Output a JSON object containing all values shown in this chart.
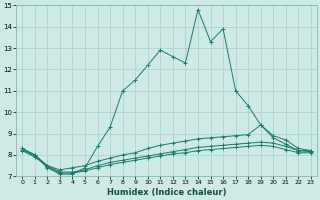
{
  "xlabel": "Humidex (Indice chaleur)",
  "ylabel": "",
  "background_color": "#ceeae6",
  "grid_color": "#aacdc8",
  "line_color": "#1a7a6e",
  "xlim": [
    -0.5,
    23.5
  ],
  "ylim": [
    7,
    15
  ],
  "xticks": [
    0,
    1,
    2,
    3,
    4,
    5,
    6,
    7,
    8,
    9,
    10,
    11,
    12,
    13,
    14,
    15,
    16,
    17,
    18,
    19,
    20,
    21,
    22,
    23
  ],
  "yticks": [
    7,
    8,
    9,
    10,
    11,
    12,
    13,
    14,
    15
  ],
  "series": {
    "main": {
      "x": [
        0,
        1,
        2,
        3,
        4,
        5,
        6,
        7,
        8,
        9,
        10,
        11,
        12,
        13,
        14,
        15,
        16,
        17,
        18,
        19,
        20,
        21,
        22,
        23
      ],
      "y": [
        8.3,
        8.0,
        7.4,
        7.1,
        7.1,
        7.4,
        8.4,
        9.3,
        11.0,
        11.5,
        12.2,
        12.9,
        12.6,
        12.3,
        14.8,
        13.3,
        13.9,
        11.0,
        10.3,
        9.4,
        8.8,
        8.5,
        8.2,
        8.2
      ]
    },
    "upper": {
      "x": [
        0,
        1,
        2,
        3,
        4,
        5,
        6,
        7,
        8,
        9,
        10,
        11,
        12,
        13,
        14,
        15,
        16,
        17,
        18,
        19,
        20,
        21,
        22,
        23
      ],
      "y": [
        8.3,
        8.0,
        7.5,
        7.3,
        7.4,
        7.5,
        7.7,
        7.85,
        8.0,
        8.1,
        8.3,
        8.45,
        8.55,
        8.65,
        8.75,
        8.8,
        8.85,
        8.9,
        8.95,
        9.4,
        8.9,
        8.7,
        8.3,
        8.2
      ]
    },
    "lower1": {
      "x": [
        0,
        1,
        2,
        3,
        4,
        5,
        6,
        7,
        8,
        9,
        10,
        11,
        12,
        13,
        14,
        15,
        16,
        17,
        18,
        19,
        20,
        21,
        22,
        23
      ],
      "y": [
        8.25,
        7.95,
        7.5,
        7.2,
        7.2,
        7.3,
        7.5,
        7.65,
        7.75,
        7.85,
        7.95,
        8.05,
        8.15,
        8.25,
        8.35,
        8.4,
        8.45,
        8.5,
        8.55,
        8.6,
        8.55,
        8.4,
        8.2,
        8.15
      ]
    },
    "lower2": {
      "x": [
        0,
        1,
        2,
        3,
        4,
        5,
        6,
        7,
        8,
        9,
        10,
        11,
        12,
        13,
        14,
        15,
        16,
        17,
        18,
        19,
        20,
        21,
        22,
        23
      ],
      "y": [
        8.2,
        7.9,
        7.45,
        7.15,
        7.15,
        7.25,
        7.4,
        7.55,
        7.65,
        7.75,
        7.85,
        7.95,
        8.05,
        8.1,
        8.2,
        8.25,
        8.3,
        8.35,
        8.4,
        8.45,
        8.4,
        8.25,
        8.1,
        8.1
      ]
    }
  }
}
